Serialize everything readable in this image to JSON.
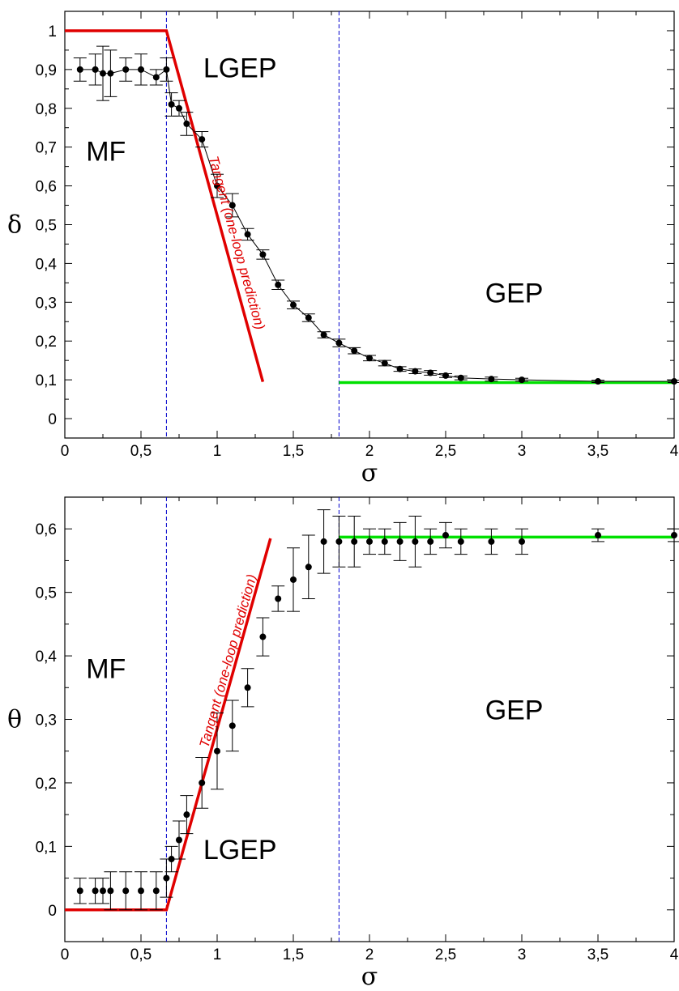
{
  "chart_data": [
    {
      "type": "scatter",
      "panel": "top",
      "xlabel": "σ",
      "ylabel": "δ",
      "xlim": [
        0,
        4
      ],
      "ylim": [
        -0.05,
        1.05
      ],
      "xticks": [
        "0",
        "0,5",
        "1",
        "1,5",
        "2",
        "2,5",
        "3",
        "3,5",
        "4"
      ],
      "xtick_values": [
        0,
        0.5,
        1,
        1.5,
        2,
        2.5,
        3,
        3.5,
        4
      ],
      "yticks": [
        "0",
        "0,1",
        "0,2",
        "0,3",
        "0,4",
        "0,5",
        "0,6",
        "0,7",
        "0,8",
        "0,9",
        "1"
      ],
      "ytick_values": [
        0,
        0.1,
        0.2,
        0.3,
        0.4,
        0.5,
        0.6,
        0.7,
        0.8,
        0.9,
        1
      ],
      "grid": false,
      "points_connected": true,
      "points": [
        {
          "x": 0.1,
          "y": 0.9,
          "err": 0.03
        },
        {
          "x": 0.2,
          "y": 0.9,
          "err": 0.04
        },
        {
          "x": 0.25,
          "y": 0.89,
          "err": 0.07
        },
        {
          "x": 0.3,
          "y": 0.89,
          "err": 0.06
        },
        {
          "x": 0.4,
          "y": 0.9,
          "err": 0.03
        },
        {
          "x": 0.5,
          "y": 0.9,
          "err": 0.04
        },
        {
          "x": 0.6,
          "y": 0.88,
          "err": 0.02
        },
        {
          "x": 0.667,
          "y": 0.9,
          "err": 0.03
        },
        {
          "x": 0.7,
          "y": 0.81,
          "err": 0.03
        },
        {
          "x": 0.75,
          "y": 0.8,
          "err": 0.02
        },
        {
          "x": 0.8,
          "y": 0.76,
          "err": 0.03
        },
        {
          "x": 0.9,
          "y": 0.72,
          "err": 0.02
        },
        {
          "x": 1.0,
          "y": 0.6,
          "err": 0.03
        },
        {
          "x": 1.1,
          "y": 0.55,
          "err": 0.03
        },
        {
          "x": 1.2,
          "y": 0.475,
          "err": 0.015
        },
        {
          "x": 1.3,
          "y": 0.423,
          "err": 0.012
        },
        {
          "x": 1.4,
          "y": 0.345,
          "err": 0.012
        },
        {
          "x": 1.5,
          "y": 0.293,
          "err": 0.01
        },
        {
          "x": 1.6,
          "y": 0.26,
          "err": 0.01
        },
        {
          "x": 1.7,
          "y": 0.216,
          "err": 0.008
        },
        {
          "x": 1.8,
          "y": 0.195,
          "err": 0.01
        },
        {
          "x": 1.9,
          "y": 0.175,
          "err": 0.008
        },
        {
          "x": 2.0,
          "y": 0.156,
          "err": 0.007
        },
        {
          "x": 2.1,
          "y": 0.143,
          "err": 0.007
        },
        {
          "x": 2.2,
          "y": 0.128,
          "err": 0.006
        },
        {
          "x": 2.3,
          "y": 0.122,
          "err": 0.006
        },
        {
          "x": 2.4,
          "y": 0.118,
          "err": 0.006
        },
        {
          "x": 2.5,
          "y": 0.111,
          "err": 0.005
        },
        {
          "x": 2.6,
          "y": 0.105,
          "err": 0.005
        },
        {
          "x": 2.8,
          "y": 0.102,
          "err": 0.005
        },
        {
          "x": 3.0,
          "y": 0.1,
          "err": 0.004
        },
        {
          "x": 3.5,
          "y": 0.096,
          "err": 0.003
        },
        {
          "x": 4.0,
          "y": 0.096,
          "err": 0.003
        }
      ],
      "red_line": [
        [
          0,
          1
        ],
        [
          0.667,
          1
        ],
        [
          1.3,
          0.095
        ]
      ],
      "green_line": [
        [
          1.8,
          0.093
        ],
        [
          4.0,
          0.093
        ]
      ],
      "vlines": [
        0.667,
        1.8
      ],
      "region_labels": [
        {
          "text": "MF",
          "x": 0.27,
          "y": 0.665
        },
        {
          "text": "LGEP",
          "x": 1.15,
          "y": 0.88
        },
        {
          "text": "GEP",
          "x": 2.95,
          "y": 0.3
        }
      ],
      "tangent_label": {
        "text": "Tangent (one-loop prediction)",
        "x": 1.1,
        "y": 0.45
      }
    },
    {
      "type": "scatter",
      "panel": "bottom",
      "xlabel": "σ",
      "ylabel": "θ",
      "xlim": [
        0,
        4
      ],
      "ylim": [
        -0.05,
        0.65
      ],
      "xticks": [
        "0",
        "0,5",
        "1",
        "1,5",
        "2",
        "2,5",
        "3",
        "3,5",
        "4"
      ],
      "xtick_values": [
        0,
        0.5,
        1,
        1.5,
        2,
        2.5,
        3,
        3.5,
        4
      ],
      "yticks": [
        "0",
        "0,1",
        "0,2",
        "0,3",
        "0,4",
        "0,5",
        "0,6"
      ],
      "ytick_values": [
        0,
        0.1,
        0.2,
        0.3,
        0.4,
        0.5,
        0.6
      ],
      "grid": false,
      "points_connected": false,
      "points": [
        {
          "x": 0.1,
          "y": 0.03,
          "err": 0.02
        },
        {
          "x": 0.2,
          "y": 0.03,
          "err": 0.02
        },
        {
          "x": 0.25,
          "y": 0.03,
          "err": 0.02
        },
        {
          "x": 0.3,
          "y": 0.03,
          "err": 0.03
        },
        {
          "x": 0.4,
          "y": 0.03,
          "err": 0.03
        },
        {
          "x": 0.5,
          "y": 0.03,
          "err": 0.03
        },
        {
          "x": 0.6,
          "y": 0.03,
          "err": 0.03
        },
        {
          "x": 0.667,
          "y": 0.05,
          "err": 0.03
        },
        {
          "x": 0.7,
          "y": 0.08,
          "err": 0.02
        },
        {
          "x": 0.75,
          "y": 0.11,
          "err": 0.03
        },
        {
          "x": 0.8,
          "y": 0.15,
          "err": 0.03
        },
        {
          "x": 0.9,
          "y": 0.2,
          "err": 0.04
        },
        {
          "x": 1.0,
          "y": 0.25,
          "err": 0.06
        },
        {
          "x": 1.1,
          "y": 0.29,
          "err": 0.04
        },
        {
          "x": 1.2,
          "y": 0.35,
          "err": 0.03
        },
        {
          "x": 1.3,
          "y": 0.43,
          "err": 0.03
        },
        {
          "x": 1.4,
          "y": 0.49,
          "err": 0.02
        },
        {
          "x": 1.5,
          "y": 0.52,
          "err": 0.05
        },
        {
          "x": 1.6,
          "y": 0.54,
          "err": 0.05
        },
        {
          "x": 1.7,
          "y": 0.58,
          "err": 0.05
        },
        {
          "x": 1.8,
          "y": 0.58,
          "err": 0.04
        },
        {
          "x": 1.9,
          "y": 0.58,
          "err": 0.04
        },
        {
          "x": 2.0,
          "y": 0.58,
          "err": 0.02
        },
        {
          "x": 2.1,
          "y": 0.58,
          "err": 0.02
        },
        {
          "x": 2.2,
          "y": 0.58,
          "err": 0.03
        },
        {
          "x": 2.3,
          "y": 0.58,
          "err": 0.04
        },
        {
          "x": 2.4,
          "y": 0.58,
          "err": 0.02
        },
        {
          "x": 2.5,
          "y": 0.59,
          "err": 0.02
        },
        {
          "x": 2.6,
          "y": 0.58,
          "err": 0.02
        },
        {
          "x": 2.8,
          "y": 0.58,
          "err": 0.02
        },
        {
          "x": 3.0,
          "y": 0.58,
          "err": 0.02
        },
        {
          "x": 3.5,
          "y": 0.59,
          "err": 0.01
        },
        {
          "x": 4.0,
          "y": 0.59,
          "err": 0.01
        }
      ],
      "red_line": [
        [
          0,
          0
        ],
        [
          0.667,
          0
        ],
        [
          1.35,
          0.585
        ]
      ],
      "green_line": [
        [
          1.8,
          0.587
        ],
        [
          4.0,
          0.587
        ]
      ],
      "vlines": [
        0.667,
        1.8
      ],
      "region_labels": [
        {
          "text": "MF",
          "x": 0.27,
          "y": 0.365
        },
        {
          "text": "LGEP",
          "x": 1.15,
          "y": 0.08
        },
        {
          "text": "GEP",
          "x": 2.95,
          "y": 0.3
        }
      ],
      "tangent_label": {
        "text": "Tangent (one-loop prediction)",
        "x": 1.1,
        "y": 0.39
      }
    }
  ],
  "colors": {
    "data": "#000000",
    "tangent_line": "#e00000",
    "asymptote_line": "#00e000",
    "boundary_lines": "#0000cc"
  }
}
